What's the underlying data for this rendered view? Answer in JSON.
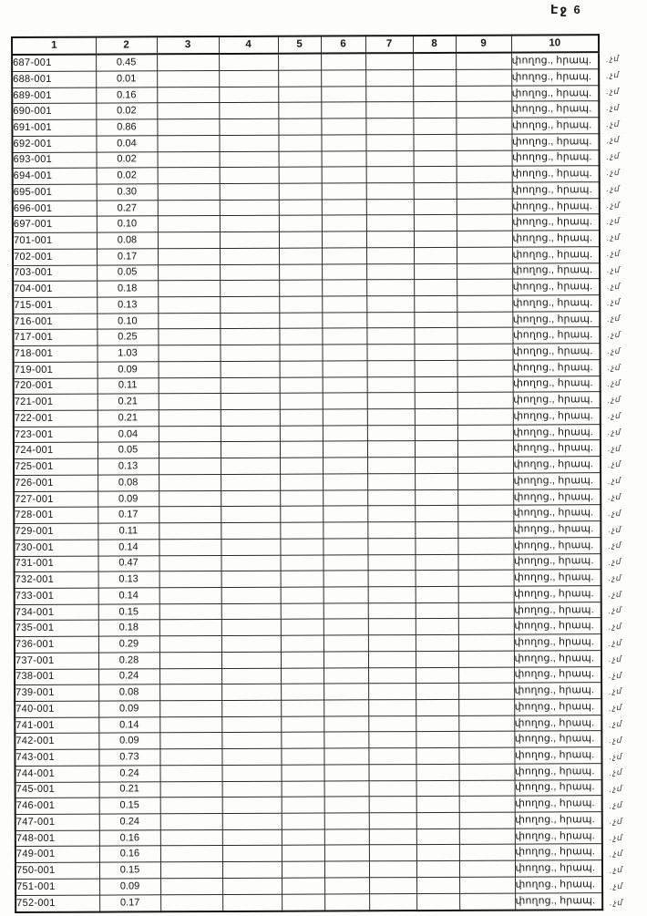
{
  "page": {
    "label": "Էջ 6"
  },
  "table": {
    "headers": [
      "1",
      "2",
      "3",
      "4",
      "5",
      "6",
      "7",
      "8",
      "9",
      "10"
    ],
    "street_label": "փողոց., հրապ.",
    "margin_note": "չմ",
    "rows": [
      {
        "id": "687-001",
        "value": "0.45"
      },
      {
        "id": "688-001",
        "value": "0.01"
      },
      {
        "id": "689-001",
        "value": "0.16"
      },
      {
        "id": "690-001",
        "value": "0.02"
      },
      {
        "id": "691-001",
        "value": "0.86"
      },
      {
        "id": "692-001",
        "value": "0.04"
      },
      {
        "id": "693-001",
        "value": "0.02"
      },
      {
        "id": "694-001",
        "value": "0.02"
      },
      {
        "id": "695-001",
        "value": "0.30"
      },
      {
        "id": "696-001",
        "value": "0.27"
      },
      {
        "id": "697-001",
        "value": "0.10"
      },
      {
        "id": "701-001",
        "value": "0.08"
      },
      {
        "id": "702-001",
        "value": "0.17"
      },
      {
        "id": "703-001",
        "value": "0.05"
      },
      {
        "id": "704-001",
        "value": "0.18"
      },
      {
        "id": "715-001",
        "value": "0.13"
      },
      {
        "id": "716-001",
        "value": "0.10"
      },
      {
        "id": "717-001",
        "value": "0.25"
      },
      {
        "id": "718-001",
        "value": "1.03"
      },
      {
        "id": "719-001",
        "value": "0.09"
      },
      {
        "id": "720-001",
        "value": "0.11"
      },
      {
        "id": "721-001",
        "value": "0.21"
      },
      {
        "id": "722-001",
        "value": "0.21"
      },
      {
        "id": "723-001",
        "value": "0.04"
      },
      {
        "id": "724-001",
        "value": "0.05"
      },
      {
        "id": "725-001",
        "value": "0.13"
      },
      {
        "id": "726-001",
        "value": "0.08"
      },
      {
        "id": "727-001",
        "value": "0.09"
      },
      {
        "id": "728-001",
        "value": "0.17"
      },
      {
        "id": "729-001",
        "value": "0.11"
      },
      {
        "id": "730-001",
        "value": "0.14"
      },
      {
        "id": "731-001",
        "value": "0.47"
      },
      {
        "id": "732-001",
        "value": "0.13"
      },
      {
        "id": "733-001",
        "value": "0.14"
      },
      {
        "id": "734-001",
        "value": "0.15"
      },
      {
        "id": "735-001",
        "value": "0.18"
      },
      {
        "id": "736-001",
        "value": "0.29"
      },
      {
        "id": "737-001",
        "value": "0.28"
      },
      {
        "id": "738-001",
        "value": "0.24"
      },
      {
        "id": "739-001",
        "value": "0.08"
      },
      {
        "id": "740-001",
        "value": "0.09"
      },
      {
        "id": "741-001",
        "value": "0.14"
      },
      {
        "id": "742-001",
        "value": "0.09"
      },
      {
        "id": "743-001",
        "value": "0.73"
      },
      {
        "id": "744-001",
        "value": "0.24"
      },
      {
        "id": "745-001",
        "value": "0.21"
      },
      {
        "id": "746-001",
        "value": "0.15"
      },
      {
        "id": "747-001",
        "value": "0.24"
      },
      {
        "id": "748-001",
        "value": "0.16"
      },
      {
        "id": "749-001",
        "value": "0.16"
      },
      {
        "id": "750-001",
        "value": "0.15"
      },
      {
        "id": "751-001",
        "value": "0.09"
      },
      {
        "id": "752-001",
        "value": "0.17"
      }
    ]
  }
}
